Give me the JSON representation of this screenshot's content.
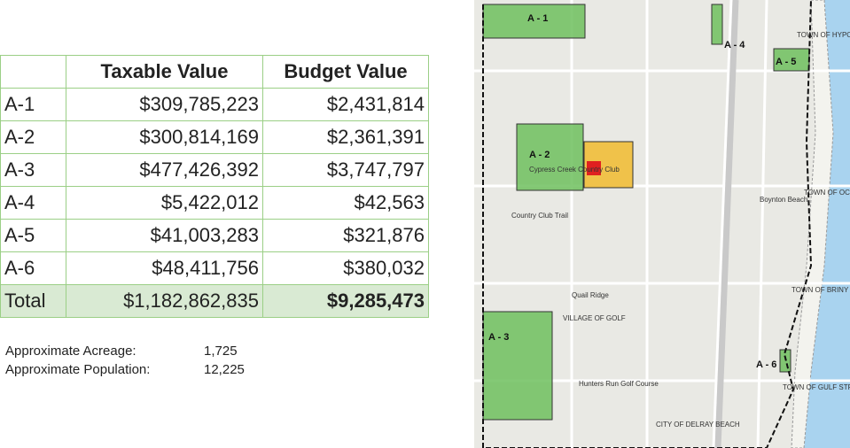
{
  "table": {
    "columns": [
      "Taxable Value",
      "Budget Value"
    ],
    "rows": [
      [
        "A-1",
        "$309,785,223",
        "$2,431,814"
      ],
      [
        "A-2",
        "$300,814,169",
        "$2,361,391"
      ],
      [
        "A-3",
        "$477,426,392",
        "$3,747,797"
      ],
      [
        "A-4",
        "$5,422,012",
        "$42,563"
      ],
      [
        "A-5",
        "$41,003,283",
        "$321,876"
      ],
      [
        "A-6",
        "$48,411,756",
        "$380,032"
      ]
    ],
    "total": [
      "Total",
      "$1,182,862,835",
      "$9,285,473"
    ]
  },
  "notes": [
    [
      "Approximate Acreage:",
      "1,725"
    ],
    [
      "Approximate Population:",
      "12,225"
    ]
  ],
  "map": {
    "zones": [
      "A - 1",
      "A - 2",
      "A - 3",
      "A - 4",
      "A - 5",
      "A - 6"
    ],
    "places": [
      "TOWN OF HYPOLUXO",
      "Boynton Beach",
      "TOWN OF OCEAN RIDGE",
      "TOWN OF BRINY BREEZES",
      "VILLAGE OF GOLF",
      "TOWN OF GULF STREAM",
      "CITY OF DELRAY BEACH",
      "Cypress Creek Country Club",
      "Country Club Trail",
      "Quail Ridge",
      "Hunters Run Golf Course"
    ]
  }
}
